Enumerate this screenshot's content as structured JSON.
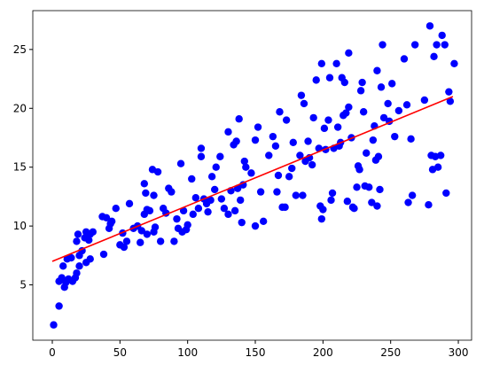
{
  "chart_data": {
    "type": "scatter",
    "xlim": [
      -14.4,
      309.8
    ],
    "ylim": [
      0.3,
      28.3
    ],
    "xticks": [
      0,
      50,
      100,
      150,
      200,
      250,
      300
    ],
    "yticks": [
      5,
      10,
      15,
      20,
      25
    ],
    "series": [
      {
        "type": "scatter",
        "color": "#0000ff",
        "x": [
          1,
          5,
          5,
          7,
          8,
          9,
          10,
          11,
          12,
          14,
          15,
          17,
          18,
          18,
          19,
          20,
          20,
          22,
          24,
          25,
          25,
          27,
          28,
          28,
          30,
          38,
          37,
          40,
          42,
          43,
          44,
          47,
          50,
          52,
          53,
          55,
          57,
          60,
          63,
          65,
          66,
          68,
          68,
          69,
          70,
          70,
          72,
          74,
          75,
          75,
          76,
          78,
          80,
          82,
          84,
          86,
          88,
          90,
          92,
          93,
          95,
          96,
          97,
          99,
          100,
          103,
          104,
          106,
          108,
          110,
          110,
          112,
          114,
          115,
          117,
          118,
          120,
          121,
          124,
          125,
          127,
          130,
          130,
          132,
          134,
          135,
          136,
          137,
          138,
          139,
          140,
          141,
          142,
          143,
          147,
          150,
          150,
          152,
          154,
          156,
          160,
          163,
          165,
          166,
          167,
          168,
          170,
          172,
          173,
          175,
          177,
          178,
          180,
          183,
          184,
          185,
          186,
          187,
          189,
          190,
          192,
          193,
          195,
          197,
          198,
          199,
          199,
          200,
          201,
          202,
          204,
          205,
          206,
          207,
          208,
          210,
          211,
          212,
          213,
          214,
          215,
          216,
          217,
          218,
          219,
          219,
          221,
          222,
          223,
          225,
          226,
          227,
          228,
          229,
          230,
          231,
          232,
          234,
          236,
          237,
          238,
          239,
          240,
          240,
          241,
          242,
          243,
          244,
          245,
          248,
          249,
          251,
          253,
          256,
          260,
          262,
          263,
          265,
          266,
          268,
          275,
          278,
          279,
          280,
          281,
          282,
          283,
          284,
          285,
          287,
          288,
          290,
          291,
          293,
          294,
          297
        ],
        "values": [
          1.6,
          3.2,
          5.3,
          5.6,
          6.6,
          4.8,
          5.2,
          7.2,
          5.5,
          7.3,
          5.3,
          5.6,
          6.0,
          8.7,
          9.3,
          7.5,
          6.6,
          7.9,
          9.0,
          9.5,
          6.9,
          8.8,
          7.2,
          9.3,
          9.5,
          7.6,
          10.8,
          10.7,
          9.8,
          10.2,
          10.4,
          11.5,
          8.4,
          9.4,
          8.2,
          8.7,
          11.9,
          9.8,
          10.0,
          8.6,
          9.6,
          11.0,
          13.6,
          12.8,
          11.4,
          9.3,
          11.3,
          14.8,
          12.6,
          9.5,
          9.9,
          14.6,
          8.7,
          11.5,
          11.1,
          13.2,
          12.9,
          8.7,
          10.6,
          9.8,
          15.3,
          9.5,
          11.3,
          9.7,
          10.1,
          14.0,
          11.0,
          12.4,
          11.5,
          16.6,
          15.9,
          12.3,
          11.9,
          11.2,
          12.2,
          14.2,
          13.1,
          15.0,
          15.9,
          12.3,
          11.5,
          18.0,
          11.0,
          13.0,
          16.9,
          11.3,
          17.2,
          13.2,
          19.1,
          12.2,
          10.3,
          13.5,
          15.5,
          15.0,
          14.5,
          17.3,
          10.0,
          18.4,
          12.9,
          10.4,
          16.0,
          17.6,
          16.8,
          12.9,
          14.3,
          19.7,
          11.6,
          11.6,
          19.0,
          14.2,
          14.9,
          17.1,
          12.6,
          16.0,
          21.1,
          12.6,
          20.4,
          15.5,
          17.2,
          15.8,
          15.2,
          19.2,
          22.4,
          16.6,
          11.7,
          23.8,
          10.6,
          11.4,
          18.3,
          16.5,
          19.0,
          22.6,
          12.2,
          12.8,
          16.6,
          23.8,
          18.4,
          16.8,
          17.1,
          22.6,
          19.4,
          22.2,
          19.6,
          12.1,
          24.7,
          20.1,
          17.5,
          11.6,
          11.5,
          13.3,
          15.1,
          14.8,
          21.5,
          22.2,
          19.7,
          13.4,
          16.2,
          13.3,
          12.0,
          17.3,
          18.5,
          15.6,
          23.2,
          11.7,
          15.9,
          13.1,
          21.8,
          25.4,
          19.2,
          20.4,
          18.9,
          22.1,
          17.6,
          19.8,
          24.2,
          20.3,
          12.0,
          17.4,
          12.6,
          25.4,
          20.7,
          11.8,
          27.0,
          16.0,
          14.8,
          24.4,
          15.9,
          25.4,
          15.0,
          16.0,
          26.2,
          25.4,
          12.8,
          21.4,
          20.6,
          23.8
        ]
      },
      {
        "type": "line",
        "color": "#ff0000",
        "x": [
          0,
          296
        ],
        "values": [
          7.0,
          21.0
        ]
      }
    ]
  }
}
